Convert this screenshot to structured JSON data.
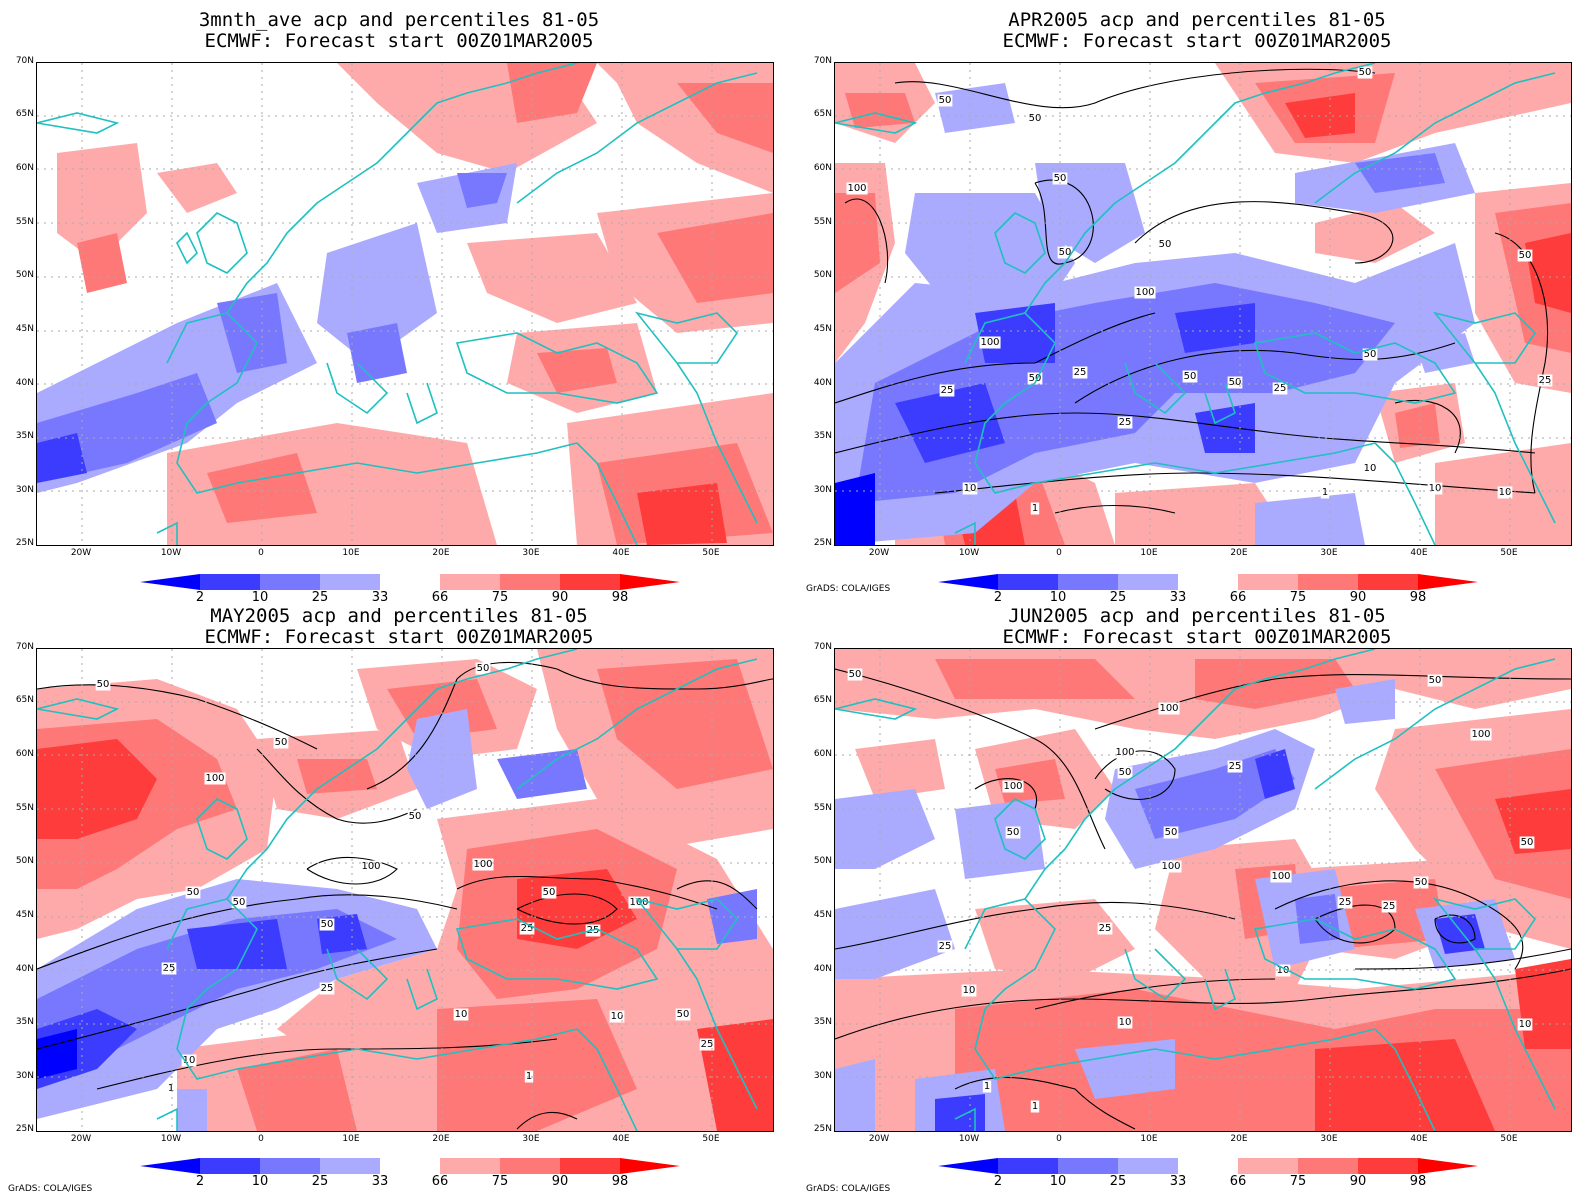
{
  "panels": [
    {
      "title1": "3mnth_ave acp and percentiles 81-05",
      "title2": "ECMWF: Forecast start 00Z01MAR2005",
      "credit": ""
    },
    {
      "title1": "APR2005 acp and percentiles 81-05",
      "title2": "ECMWF: Forecast start 00Z01MAR2005",
      "credit": "GrADS: COLA/IGES"
    },
    {
      "title1": "MAY2005 acp and percentiles 81-05",
      "title2": "ECMWF: Forecast start 00Z01MAR2005",
      "credit": "GrADS: COLA/IGES"
    },
    {
      "title1": "JUN2005 acp and percentiles 81-05",
      "title2": "ECMWF: Forecast start 00Z01MAR2005",
      "credit": "GrADS: COLA/IGES"
    }
  ],
  "lat_labels": [
    "70N",
    "65N",
    "60N",
    "55N",
    "50N",
    "45N",
    "40N",
    "35N",
    "30N",
    "25N"
  ],
  "lon_labels": [
    "20W",
    "10W",
    "0",
    "10E",
    "20E",
    "30E",
    "40E",
    "50E"
  ],
  "colorbar": {
    "labels": [
      "2",
      "10",
      "25",
      "33",
      "66",
      "75",
      "90",
      "98"
    ],
    "colors": [
      "#0000ff",
      "#3c3cff",
      "#7878ff",
      "#aaaaff",
      "#ffffff",
      "#ffaaaa",
      "#ff7878",
      "#ff3c3c",
      "#ff0000"
    ]
  },
  "contour_labels": {
    "apr": [
      "50",
      "50",
      "50",
      "100",
      "50",
      "50",
      "50",
      "100",
      "100",
      "25",
      "50",
      "25",
      "50",
      "50",
      "25",
      "25",
      "50",
      "10",
      "10",
      "1",
      "1",
      "10",
      "10",
      "50",
      "25"
    ],
    "may": [
      "50",
      "50",
      "100",
      "50",
      "50",
      "100",
      "50",
      "50",
      "100",
      "100",
      "50",
      "50",
      "25",
      "25",
      "25",
      "25",
      "10",
      "10",
      "50",
      "1",
      "1",
      "10",
      "25"
    ],
    "jun": [
      "50",
      "50",
      "100",
      "100",
      "50",
      "25",
      "50",
      "100",
      "50",
      "100",
      "100",
      "25",
      "25",
      "50",
      "25",
      "10",
      "10",
      "100",
      "50",
      "25",
      "10",
      "10",
      "1",
      "1"
    ]
  }
}
